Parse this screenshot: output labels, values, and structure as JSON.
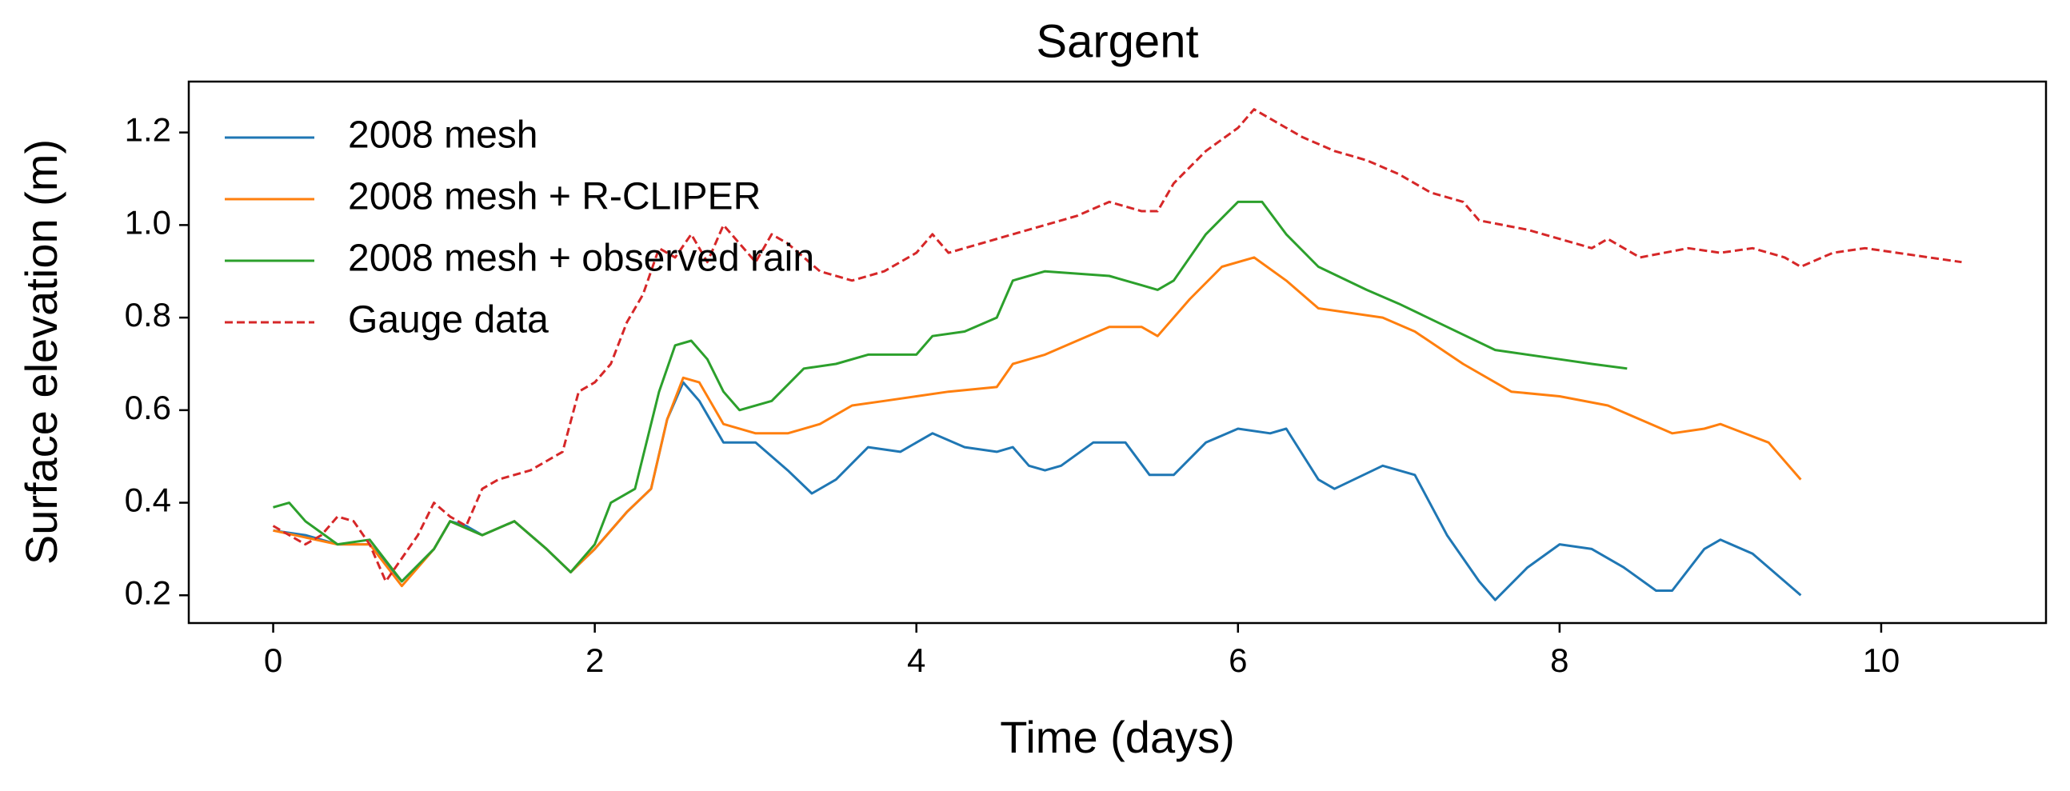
{
  "chart_data": {
    "type": "line",
    "title": "Sargent",
    "x_label": "Time (days)",
    "y_label": "Surface elevation (m)",
    "xlim": [
      -0.525,
      11.025
    ],
    "ylim": [
      0.14,
      1.31
    ],
    "xticks": [
      0,
      2,
      4,
      6,
      8,
      10
    ],
    "yticks": [
      0.2,
      0.4,
      0.6,
      0.8,
      {
        "value": 1.0,
        "label": "1.0"
      },
      1.2
    ],
    "legend": "upper left",
    "series": [
      {
        "name": "2008 mesh",
        "color": "#1f77b4",
        "linestyle": "solid",
        "x": [
          0,
          0.2,
          0.4,
          0.6,
          0.8,
          1.0,
          1.1,
          1.2,
          1.3,
          1.5,
          1.7,
          1.85,
          2.0,
          2.2,
          2.35,
          2.45,
          2.55,
          2.65,
          2.8,
          3.0,
          3.2,
          3.35,
          3.5,
          3.7,
          3.9,
          4.1,
          4.3,
          4.5,
          4.6,
          4.7,
          4.8,
          4.9,
          5.1,
          5.3,
          5.45,
          5.6,
          5.8,
          6.0,
          6.2,
          6.3,
          6.5,
          6.6,
          6.9,
          7.1,
          7.3,
          7.5,
          7.6,
          7.8,
          8.0,
          8.2,
          8.4,
          8.6,
          8.7,
          8.9,
          9.0,
          9.2,
          9.5
        ],
        "values": [
          0.34,
          0.33,
          0.31,
          0.31,
          0.23,
          0.3,
          0.36,
          0.35,
          0.33,
          0.36,
          0.3,
          0.25,
          0.3,
          0.38,
          0.43,
          0.58,
          0.66,
          0.62,
          0.53,
          0.53,
          0.47,
          0.42,
          0.45,
          0.52,
          0.51,
          0.55,
          0.52,
          0.51,
          0.52,
          0.48,
          0.47,
          0.48,
          0.53,
          0.53,
          0.46,
          0.46,
          0.53,
          0.56,
          0.55,
          0.56,
          0.45,
          0.43,
          0.48,
          0.46,
          0.33,
          0.23,
          0.19,
          0.26,
          0.31,
          0.3,
          0.26,
          0.21,
          0.21,
          0.3,
          0.32,
          0.29,
          0.2
        ]
      },
      {
        "name": "2008 mesh + R-CLIPER",
        "color": "#ff7f0e",
        "linestyle": "solid",
        "x": [
          0,
          0.4,
          0.6,
          0.8,
          1.0,
          1.1,
          1.3,
          1.5,
          1.7,
          1.85,
          2.0,
          2.2,
          2.35,
          2.45,
          2.55,
          2.65,
          2.8,
          3.0,
          3.2,
          3.4,
          3.6,
          3.8,
          4.0,
          4.2,
          4.5,
          4.6,
          4.8,
          5.0,
          5.2,
          5.4,
          5.5,
          5.7,
          5.9,
          6.1,
          6.3,
          6.5,
          6.9,
          7.1,
          7.4,
          7.7,
          8.0,
          8.3,
          8.5,
          8.7,
          8.9,
          9.0,
          9.3,
          9.5
        ],
        "values": [
          0.34,
          0.31,
          0.31,
          0.22,
          0.3,
          0.36,
          0.33,
          0.36,
          0.3,
          0.25,
          0.3,
          0.38,
          0.43,
          0.58,
          0.67,
          0.66,
          0.57,
          0.55,
          0.55,
          0.57,
          0.61,
          0.62,
          0.63,
          0.64,
          0.65,
          0.7,
          0.72,
          0.75,
          0.78,
          0.78,
          0.76,
          0.84,
          0.91,
          0.93,
          0.88,
          0.82,
          0.8,
          0.77,
          0.7,
          0.64,
          0.63,
          0.61,
          0.58,
          0.55,
          0.56,
          0.57,
          0.53,
          0.45
        ]
      },
      {
        "name": "2008 mesh + observed rain",
        "color": "#2ca02c",
        "linestyle": "solid",
        "x": [
          0,
          0.1,
          0.2,
          0.4,
          0.6,
          0.8,
          1.0,
          1.1,
          1.3,
          1.5,
          1.7,
          1.85,
          2.0,
          2.1,
          2.25,
          2.4,
          2.5,
          2.6,
          2.7,
          2.8,
          2.9,
          3.1,
          3.3,
          3.5,
          3.7,
          4.0,
          4.1,
          4.3,
          4.5,
          4.6,
          4.8,
          5.2,
          5.4,
          5.5,
          5.6,
          5.8,
          6.0,
          6.15,
          6.3,
          6.5,
          6.8,
          7.0,
          7.3,
          7.6,
          8.0,
          8.2,
          8.42
        ],
        "values": [
          0.39,
          0.4,
          0.36,
          0.31,
          0.32,
          0.23,
          0.3,
          0.36,
          0.33,
          0.36,
          0.3,
          0.25,
          0.31,
          0.4,
          0.43,
          0.64,
          0.74,
          0.75,
          0.71,
          0.64,
          0.6,
          0.62,
          0.69,
          0.7,
          0.72,
          0.72,
          0.76,
          0.77,
          0.8,
          0.88,
          0.9,
          0.89,
          0.87,
          0.86,
          0.88,
          0.98,
          1.05,
          1.05,
          0.98,
          0.91,
          0.86,
          0.83,
          0.78,
          0.73,
          0.71,
          0.7,
          0.69
        ]
      },
      {
        "name": "Gauge data",
        "color": "#d62728",
        "linestyle": "dashed",
        "x": [
          0,
          0.1,
          0.2,
          0.3,
          0.4,
          0.5,
          0.6,
          0.7,
          0.8,
          0.9,
          1.0,
          1.1,
          1.2,
          1.3,
          1.4,
          1.5,
          1.6,
          1.7,
          1.8,
          1.9,
          2.0,
          2.1,
          2.2,
          2.3,
          2.4,
          2.5,
          2.6,
          2.7,
          2.8,
          2.9,
          3.0,
          3.1,
          3.2,
          3.4,
          3.6,
          3.8,
          4.0,
          4.1,
          4.2,
          4.4,
          4.6,
          4.8,
          5.0,
          5.2,
          5.4,
          5.5,
          5.6,
          5.8,
          6.0,
          6.1,
          6.2,
          6.4,
          6.6,
          6.8,
          7.0,
          7.2,
          7.4,
          7.5,
          7.8,
          8.0,
          8.2,
          8.3,
          8.4,
          8.5,
          8.8,
          9.0,
          9.2,
          9.4,
          9.5,
          9.7,
          9.9,
          10.1,
          10.3,
          10.5
        ],
        "values": [
          0.35,
          0.33,
          0.31,
          0.33,
          0.37,
          0.36,
          0.31,
          0.23,
          0.28,
          0.33,
          0.4,
          0.37,
          0.35,
          0.43,
          0.45,
          0.46,
          0.47,
          0.49,
          0.51,
          0.64,
          0.66,
          0.7,
          0.79,
          0.85,
          0.95,
          0.93,
          0.98,
          0.92,
          1.0,
          0.96,
          0.92,
          0.98,
          0.96,
          0.9,
          0.88,
          0.9,
          0.94,
          0.98,
          0.94,
          0.96,
          0.98,
          1.0,
          1.02,
          1.05,
          1.03,
          1.03,
          1.09,
          1.16,
          1.21,
          1.25,
          1.23,
          1.19,
          1.16,
          1.14,
          1.11,
          1.07,
          1.05,
          1.01,
          0.99,
          0.97,
          0.95,
          0.97,
          0.95,
          0.93,
          0.95,
          0.94,
          0.95,
          0.93,
          0.91,
          0.94,
          0.95,
          0.94,
          0.93,
          0.92
        ]
      }
    ]
  }
}
